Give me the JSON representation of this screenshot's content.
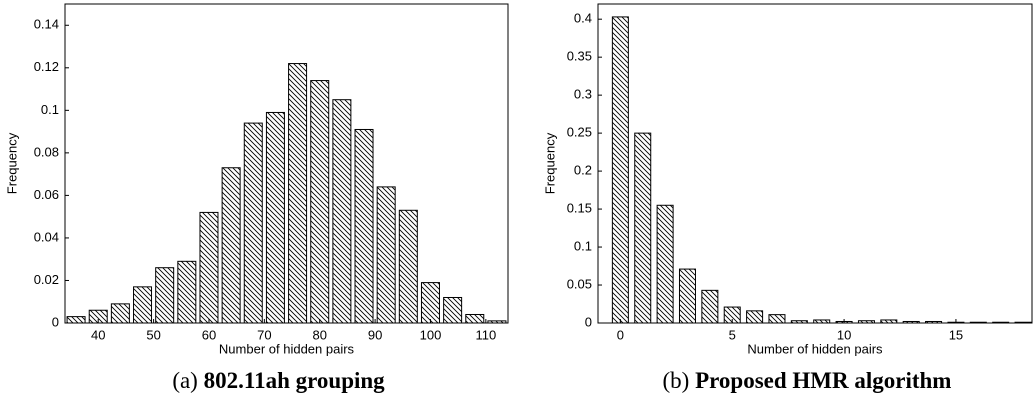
{
  "chart_data": [
    {
      "type": "bar",
      "caption_label": "(a)",
      "caption": "802.11ah grouping",
      "x_label": "Number of hidden pairs",
      "y_label": "Frequency",
      "x": [
        36,
        40,
        44,
        48,
        52,
        56,
        60,
        64,
        68,
        72,
        76,
        80,
        84,
        88,
        92,
        96,
        100,
        104,
        108,
        112
      ],
      "values": [
        0.003,
        0.006,
        0.009,
        0.017,
        0.026,
        0.029,
        0.052,
        0.073,
        0.094,
        0.099,
        0.122,
        0.114,
        0.105,
        0.091,
        0.064,
        0.053,
        0.019,
        0.012,
        0.004,
        0.001
      ],
      "color": "#000000",
      "xlim": [
        34,
        114
      ],
      "xticks": [
        40,
        50,
        60,
        70,
        80,
        90,
        100,
        110
      ],
      "ylim": [
        0,
        0.15
      ],
      "yticks": [
        0,
        0.02,
        0.04,
        0.06,
        0.08,
        0.1,
        0.12,
        0.14
      ]
    },
    {
      "type": "bar",
      "caption_label": "(b)",
      "caption": "Proposed HMR algorithm",
      "x_label": "Number of hidden pairs",
      "y_label": "Frequency",
      "x": [
        0,
        1,
        2,
        3,
        4,
        5,
        6,
        7,
        8,
        9,
        10,
        11,
        12,
        13,
        14,
        15,
        16,
        17,
        18
      ],
      "values": [
        0.403,
        0.25,
        0.155,
        0.071,
        0.043,
        0.021,
        0.016,
        0.011,
        0.003,
        0.004,
        0.002,
        0.003,
        0.004,
        0.002,
        0.002,
        0.001,
        0.001,
        0.001,
        0.001
      ],
      "color": "#000000",
      "xlim": [
        -1,
        18.4
      ],
      "xticks": [
        0,
        5,
        10,
        15
      ],
      "ylim": [
        0,
        0.42
      ],
      "yticks": [
        0,
        0.05,
        0.1,
        0.15,
        0.2,
        0.25,
        0.3,
        0.35,
        0.4
      ]
    }
  ]
}
